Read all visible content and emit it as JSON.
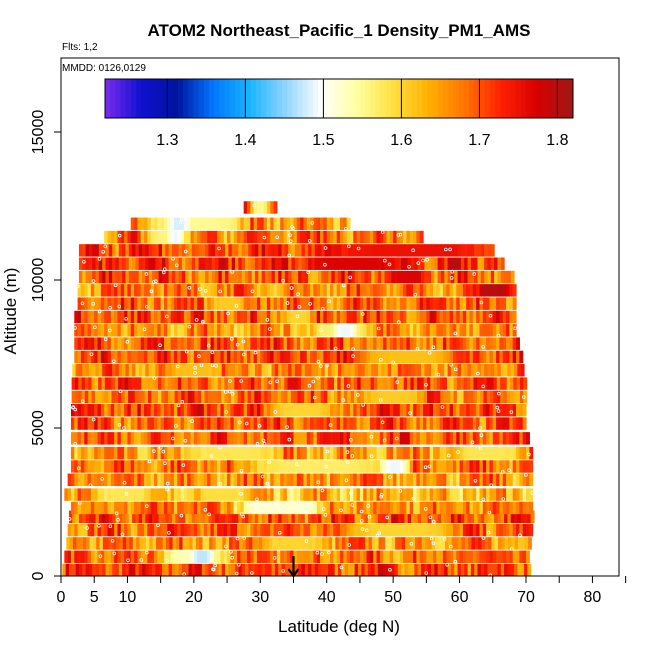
{
  "chart_data": {
    "type": "heatmap",
    "title": "ATOM2 Northeast_Pacific_1 Density_PM1_AMS",
    "subtitle_flights": "Flts: 1,2",
    "subtitle_dates": "MMDD: 0126,0129",
    "xlabel": "Latitude (deg N)",
    "ylabel": "Altitude (m)",
    "xlim": [
      0,
      84
    ],
    "ylim": [
      0,
      17500
    ],
    "x_ticks": [
      0,
      5,
      10,
      20,
      30,
      40,
      50,
      60,
      70,
      80
    ],
    "x_minor_ticks": [
      15,
      25,
      35,
      45,
      55,
      65,
      75,
      85
    ],
    "y_ticks": [
      0,
      5000,
      10000,
      15000
    ],
    "colorbar": {
      "min": 1.22,
      "max": 1.82,
      "ticks": [
        1.3,
        1.4,
        1.5,
        1.6,
        1.7,
        1.8
      ],
      "colors": [
        "#7a2cf0",
        "#1010d0",
        "#00149e",
        "#0076ff",
        "#18b4ff",
        "#8fd4ff",
        "#ffffff",
        "#ffffa0",
        "#ffe040",
        "#ffb000",
        "#ff7400",
        "#ff2000",
        "#d80000",
        "#9e1818"
      ]
    },
    "annotation": "arrow at Latitude 35 deg N pointing to surface",
    "arrow_x": 35,
    "bands": [
      {
        "alt": 200,
        "xmin": 0.2,
        "xmax": 70.5,
        "base": 1.71
      },
      {
        "alt": 650,
        "xmin": 0.5,
        "xmax": 70.5,
        "base": 1.68
      },
      {
        "alt": 1100,
        "xmin": 0.8,
        "xmax": 70.5,
        "base": 1.66
      },
      {
        "alt": 1550,
        "xmin": 1.0,
        "xmax": 70.8,
        "base": 1.69
      },
      {
        "alt": 2000,
        "xmin": 1.2,
        "xmax": 70.8,
        "base": 1.7
      },
      {
        "alt": 2300,
        "xmin": 1.5,
        "xmax": 70.8,
        "base": 1.67
      },
      {
        "alt": 2750,
        "xmin": 0.5,
        "xmax": 71.0,
        "base": 1.63
      },
      {
        "alt": 3250,
        "xmin": 1.0,
        "xmax": 71.0,
        "base": 1.66
      },
      {
        "alt": 3700,
        "xmin": 1.5,
        "xmax": 71.0,
        "base": 1.68
      },
      {
        "alt": 4150,
        "xmin": 1.5,
        "xmax": 71.0,
        "base": 1.65
      },
      {
        "alt": 4650,
        "xmin": 1.5,
        "xmax": 70.5,
        "base": 1.7
      },
      {
        "alt": 5150,
        "xmin": 1.5,
        "xmax": 70.0,
        "base": 1.69
      },
      {
        "alt": 5600,
        "xmin": 1.5,
        "xmax": 70.0,
        "base": 1.71
      },
      {
        "alt": 6050,
        "xmin": 1.6,
        "xmax": 70.0,
        "base": 1.68
      },
      {
        "alt": 6500,
        "xmin": 1.6,
        "xmax": 70.0,
        "base": 1.7
      },
      {
        "alt": 6950,
        "xmin": 1.7,
        "xmax": 69.5,
        "base": 1.67
      },
      {
        "alt": 7400,
        "xmin": 2.0,
        "xmax": 69.5,
        "base": 1.71
      },
      {
        "alt": 7850,
        "xmin": 2.0,
        "xmax": 69.0,
        "base": 1.69
      },
      {
        "alt": 8300,
        "xmin": 2.0,
        "xmax": 68.5,
        "base": 1.66
      },
      {
        "alt": 8750,
        "xmin": 2.0,
        "xmax": 68.5,
        "base": 1.7
      },
      {
        "alt": 9200,
        "xmin": 2.5,
        "xmax": 68.5,
        "base": 1.69
      },
      {
        "alt": 9650,
        "xmin": 2.5,
        "xmax": 68.5,
        "base": 1.67
      },
      {
        "alt": 10100,
        "xmin": 2.7,
        "xmax": 68.0,
        "base": 1.7
      },
      {
        "alt": 10550,
        "xmin": 2.7,
        "xmax": 66.5,
        "base": 1.72
      },
      {
        "alt": 11000,
        "xmin": 2.7,
        "xmax": 65.0,
        "base": 1.71
      },
      {
        "alt": 11450,
        "xmin": 6.5,
        "xmax": 54.5,
        "base": 1.68
      },
      {
        "alt": 11900,
        "xmin": 10.5,
        "xmax": 43.5,
        "base": 1.66
      },
      {
        "alt": 12450,
        "xmin": 27.5,
        "xmax": 32.5,
        "base": 1.7
      }
    ],
    "features": [
      {
        "alt": 2300,
        "x": [
          28.0,
          38.0
        ],
        "value": 1.37
      },
      {
        "alt": 2300,
        "x": [
          26.0,
          40.0
        ],
        "value": 1.52
      },
      {
        "alt": 650,
        "x": [
          14.5,
          25.0
        ],
        "value": 1.53
      },
      {
        "alt": 650,
        "x": [
          19.5,
          22.5
        ],
        "value": 1.47
      },
      {
        "alt": 3700,
        "x": [
          26.0,
          52.0
        ],
        "value": 1.57
      },
      {
        "alt": 3700,
        "x": [
          48.0,
          52.0
        ],
        "value": 1.49
      },
      {
        "alt": 4150,
        "x": [
          18.0,
          33.0
        ],
        "value": 1.58
      },
      {
        "alt": 4150,
        "x": [
          58.0,
          70.0
        ],
        "value": 1.58
      },
      {
        "alt": 1550,
        "x": [
          42.0,
          60.0
        ],
        "value": 1.6
      },
      {
        "alt": 2750,
        "x": [
          5.0,
          14.0
        ],
        "value": 1.58
      },
      {
        "alt": 2750,
        "x": [
          20.0,
          28.0
        ],
        "value": 1.59
      },
      {
        "alt": 8300,
        "x": [
          37.0,
          47.0
        ],
        "value": 1.56
      },
      {
        "alt": 8300,
        "x": [
          41.0,
          44.0
        ],
        "value": 1.49
      },
      {
        "alt": 5600,
        "x": [
          30.0,
          42.0
        ],
        "value": 1.6
      },
      {
        "alt": 10550,
        "x": [
          35.0,
          52.0
        ],
        "value": 1.77
      },
      {
        "alt": 11000,
        "x": [
          38.0,
          65.0
        ],
        "value": 1.75
      },
      {
        "alt": 9650,
        "x": [
          62.0,
          68.0
        ],
        "value": 1.8
      },
      {
        "alt": 10100,
        "x": [
          49.0,
          55.0
        ],
        "value": 1.77
      },
      {
        "alt": 11900,
        "x": [
          12.0,
          28.0
        ],
        "value": 1.55
      },
      {
        "alt": 11900,
        "x": [
          16.0,
          19.0
        ],
        "value": 1.48
      },
      {
        "alt": 11450,
        "x": [
          12.0,
          20.0
        ],
        "value": 1.56
      },
      {
        "alt": 11450,
        "x": [
          16.0,
          18.0
        ],
        "value": 1.49
      },
      {
        "alt": 9200,
        "x": [
          22.0,
          28.0
        ],
        "value": 1.61
      },
      {
        "alt": 6950,
        "x": [
          15.0,
          24.0
        ],
        "value": 1.62
      },
      {
        "alt": 7400,
        "x": [
          44.0,
          60.0
        ],
        "value": 1.62
      },
      {
        "alt": 8750,
        "x": [
          33.0,
          38.0
        ],
        "value": 1.6
      },
      {
        "alt": 6050,
        "x": [
          44.0,
          55.0
        ],
        "value": 1.61
      },
      {
        "alt": 1100,
        "x": [
          30.0,
          40.0
        ],
        "value": 1.6
      },
      {
        "alt": 12450,
        "x": [
          28.5,
          31.0
        ],
        "value": 1.55
      }
    ]
  }
}
